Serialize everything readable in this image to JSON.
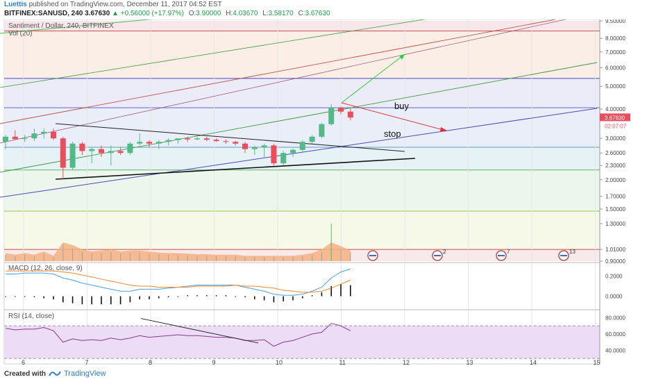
{
  "header": {
    "author": "Luettis",
    "published_text": "published on TradingView.com, December 11, 2017 04:52 EST",
    "symbol_line": "BITFINEX:SANUSD, 240",
    "last": "3.67630",
    "change": "+0.56000 (+17.97%)",
    "open_label": "O:",
    "open": "3.90000",
    "high_label": "H:",
    "high": "4.03670",
    "low_label": "L:",
    "low": "3.58170",
    "close_label": "C:",
    "close": "3.67630",
    "up_arrow": "▲"
  },
  "chart_data": {
    "type": "candlestick",
    "title": "Santiment / Dollar, 240, BITFINEX",
    "volume_label": "Vol (20)",
    "price_scale": "log",
    "ylim": [
      0.9,
      9.5
    ],
    "y_ticks": [
      "9.50000",
      "8.00000",
      "7.00000",
      "6.00000",
      "5.00000",
      "4.00000",
      "3.00000",
      "2.60000",
      "2.30000",
      "2.00000",
      "1.70000",
      "1.50000",
      "1.30000",
      "1.01000",
      "0.90000"
    ],
    "x_ticks": [
      "6",
      "7",
      "8",
      "9",
      "10",
      "11",
      "12",
      "13",
      "14",
      "15"
    ],
    "last_price_label": "3.67630",
    "countdown_label": "02:07:07",
    "candles": [
      {
        "o": 2.9,
        "h": 3.1,
        "l": 2.7,
        "c": 3.05
      },
      {
        "o": 3.05,
        "h": 3.25,
        "l": 2.95,
        "c": 2.98
      },
      {
        "o": 2.98,
        "h": 3.1,
        "l": 2.9,
        "c": 3.0
      },
      {
        "o": 3.0,
        "h": 3.3,
        "l": 2.92,
        "c": 3.15
      },
      {
        "o": 3.15,
        "h": 3.3,
        "l": 3.0,
        "c": 3.2
      },
      {
        "o": 3.2,
        "h": 3.3,
        "l": 2.95,
        "c": 3.0
      },
      {
        "o": 3.0,
        "h": 3.05,
        "l": 2.0,
        "c": 2.25
      },
      {
        "o": 2.25,
        "h": 2.9,
        "l": 2.2,
        "c": 2.85
      },
      {
        "o": 2.85,
        "h": 2.9,
        "l": 2.55,
        "c": 2.65
      },
      {
        "o": 2.65,
        "h": 2.75,
        "l": 2.35,
        "c": 2.7
      },
      {
        "o": 2.7,
        "h": 2.8,
        "l": 2.5,
        "c": 2.6
      },
      {
        "o": 2.6,
        "h": 2.8,
        "l": 2.3,
        "c": 2.65
      },
      {
        "o": 2.65,
        "h": 2.75,
        "l": 2.55,
        "c": 2.6
      },
      {
        "o": 2.6,
        "h": 2.9,
        "l": 2.55,
        "c": 2.85
      },
      {
        "o": 2.85,
        "h": 3.15,
        "l": 2.8,
        "c": 2.9
      },
      {
        "o": 2.9,
        "h": 2.95,
        "l": 2.75,
        "c": 2.85
      },
      {
        "o": 2.85,
        "h": 2.95,
        "l": 2.7,
        "c": 2.9
      },
      {
        "o": 2.9,
        "h": 3.0,
        "l": 2.8,
        "c": 2.95
      },
      {
        "o": 2.95,
        "h": 3.0,
        "l": 2.85,
        "c": 3.0
      },
      {
        "o": 3.0,
        "h": 3.05,
        "l": 2.9,
        "c": 2.97
      },
      {
        "o": 2.97,
        "h": 3.05,
        "l": 2.95,
        "c": 3.0
      },
      {
        "o": 3.0,
        "h": 3.05,
        "l": 2.92,
        "c": 2.96
      },
      {
        "o": 2.96,
        "h": 3.0,
        "l": 2.9,
        "c": 2.92
      },
      {
        "o": 2.92,
        "h": 2.97,
        "l": 2.85,
        "c": 2.9
      },
      {
        "o": 2.9,
        "h": 2.93,
        "l": 2.8,
        "c": 2.85
      },
      {
        "o": 2.85,
        "h": 2.9,
        "l": 2.6,
        "c": 2.7
      },
      {
        "o": 2.7,
        "h": 2.8,
        "l": 2.55,
        "c": 2.75
      },
      {
        "o": 2.75,
        "h": 2.85,
        "l": 2.5,
        "c": 2.8
      },
      {
        "o": 2.8,
        "h": 2.85,
        "l": 2.3,
        "c": 2.35
      },
      {
        "o": 2.35,
        "h": 2.65,
        "l": 2.3,
        "c": 2.6
      },
      {
        "o": 2.6,
        "h": 2.72,
        "l": 2.5,
        "c": 2.68
      },
      {
        "o": 2.68,
        "h": 2.95,
        "l": 2.6,
        "c": 2.9
      },
      {
        "o": 2.9,
        "h": 3.1,
        "l": 2.85,
        "c": 3.05
      },
      {
        "o": 3.05,
        "h": 3.5,
        "l": 3.0,
        "c": 3.45
      },
      {
        "o": 3.45,
        "h": 4.2,
        "l": 3.4,
        "c": 4.05
      },
      {
        "o": 4.05,
        "h": 4.1,
        "l": 3.8,
        "c": 3.9
      },
      {
        "o": 3.9,
        "h": 4.03,
        "l": 3.58,
        "c": 3.68
      }
    ],
    "volume": [
      0.15,
      0.12,
      0.15,
      0.12,
      0.18,
      0.1,
      0.4,
      0.3,
      0.22,
      0.18,
      0.2,
      0.22,
      0.18,
      0.2,
      0.2,
      0.18,
      0.16,
      0.15,
      0.15,
      0.14,
      0.13,
      0.13,
      0.12,
      0.12,
      0.12,
      0.1,
      0.1,
      0.1,
      0.1,
      0.1,
      0.1,
      0.12,
      0.15,
      0.22,
      0.9,
      0.28,
      0.2
    ],
    "macd": {
      "label": "MACD (12, 26, close, 9)",
      "ylim": [
        -0.12,
        0.32
      ],
      "y_ticks": [
        "0.2000",
        "0.0000"
      ],
      "macd_line": [
        0.22,
        0.22,
        0.23,
        0.23,
        0.23,
        0.22,
        0.18,
        0.16,
        0.13,
        0.11,
        0.09,
        0.07,
        0.05,
        0.05,
        0.07,
        0.07,
        0.07,
        0.08,
        0.09,
        0.1,
        0.11,
        0.11,
        0.11,
        0.11,
        0.11,
        0.09,
        0.07,
        0.05,
        0.02,
        0.01,
        0.01,
        0.02,
        0.05,
        0.09,
        0.18,
        0.24,
        0.27
      ],
      "signal_line": [
        0.25,
        0.25,
        0.25,
        0.25,
        0.25,
        0.25,
        0.24,
        0.23,
        0.21,
        0.19,
        0.17,
        0.15,
        0.13,
        0.11,
        0.1,
        0.1,
        0.09,
        0.09,
        0.09,
        0.09,
        0.1,
        0.1,
        0.1,
        0.1,
        0.11,
        0.1,
        0.1,
        0.09,
        0.08,
        0.06,
        0.05,
        0.04,
        0.04,
        0.05,
        0.08,
        0.12,
        0.16
      ],
      "histogram": [
        0.0,
        0.0,
        0.0,
        -0.01,
        -0.02,
        -0.03,
        -0.06,
        -0.07,
        -0.08,
        -0.08,
        -0.08,
        -0.08,
        -0.08,
        -0.06,
        -0.03,
        -0.03,
        -0.02,
        -0.01,
        0.0,
        0.01,
        0.01,
        0.01,
        0.01,
        0.01,
        0.0,
        -0.01,
        -0.03,
        -0.04,
        -0.06,
        -0.05,
        -0.04,
        -0.02,
        0.01,
        0.04,
        0.1,
        0.12,
        0.11
      ]
    },
    "rsi": {
      "label": "RSI (14, close)",
      "ylim": [
        25,
        88
      ],
      "y_ticks": [
        "80.0000",
        "60.0000",
        "40.0000"
      ],
      "band": [
        30,
        70
      ],
      "values": [
        67,
        65,
        66,
        66,
        68,
        64,
        50,
        54,
        52,
        53,
        52,
        55,
        53,
        55,
        58,
        56,
        57,
        58,
        59,
        58,
        58,
        57,
        56,
        56,
        55,
        52,
        52,
        53,
        45,
        50,
        52,
        56,
        60,
        62,
        73,
        70,
        64
      ]
    },
    "annotations": {
      "buy": "buy",
      "stop": "stop"
    },
    "event_markers": [
      "",
      "2",
      "7",
      "13"
    ]
  },
  "footer": {
    "created_with": "Created with",
    "brand": "TradingView"
  }
}
